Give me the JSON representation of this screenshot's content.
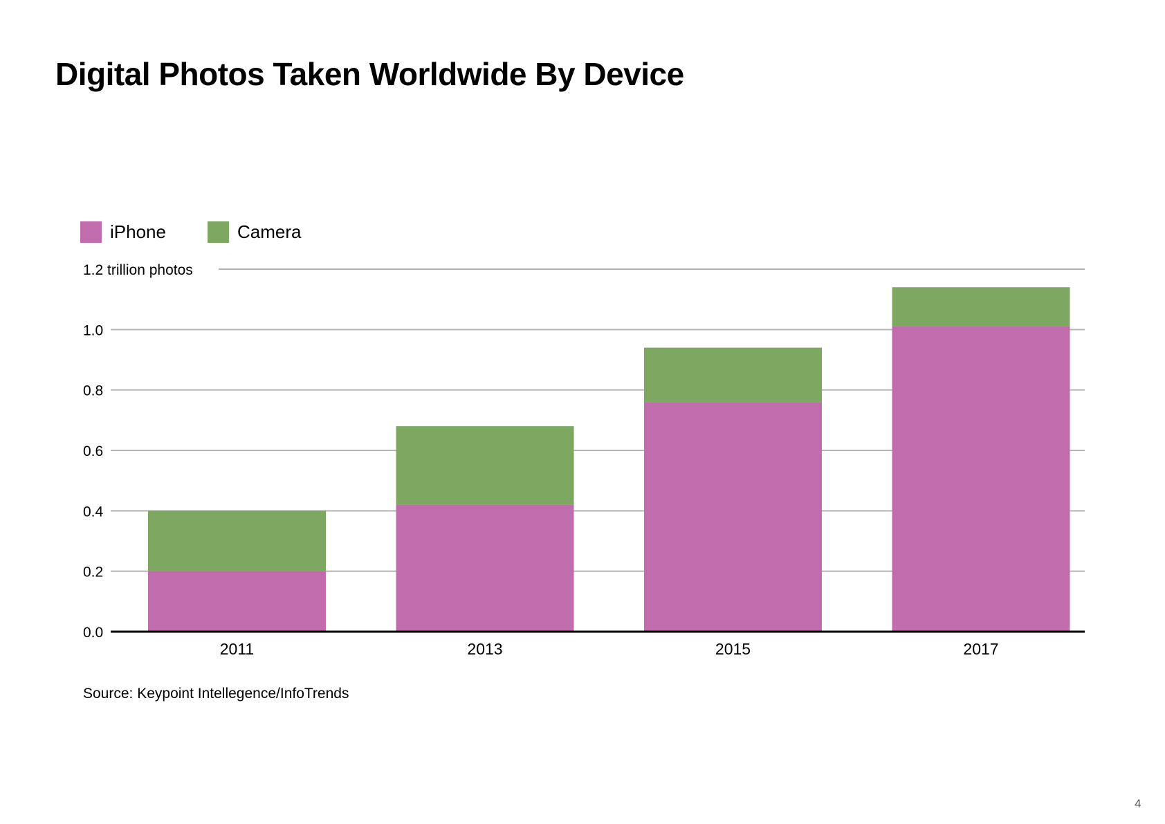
{
  "title": "Digital Photos Taken Worldwide By Device",
  "source": "Source: Keypoint Intellegence/InfoTrends",
  "page_number": "4",
  "colors": {
    "iphone": "#c16cac",
    "camera": "#7ea861",
    "grid": "#b3b3b3",
    "axis": "#000000"
  },
  "chart_data": {
    "type": "bar",
    "stacked": true,
    "categories": [
      "2011",
      "2013",
      "2015",
      "2017"
    ],
    "series": [
      {
        "name": "iPhone",
        "values": [
          0.2,
          0.42,
          0.76,
          1.01
        ]
      },
      {
        "name": "Camera",
        "values": [
          0.2,
          0.26,
          0.18,
          0.13
        ]
      }
    ],
    "ylim": [
      0,
      1.2
    ],
    "yticks": [
      "0.0",
      "0.2",
      "0.4",
      "0.6",
      "0.8",
      "1.0",
      "1.2 trillion photos"
    ],
    "grid": true,
    "legend_position": "top-left"
  }
}
